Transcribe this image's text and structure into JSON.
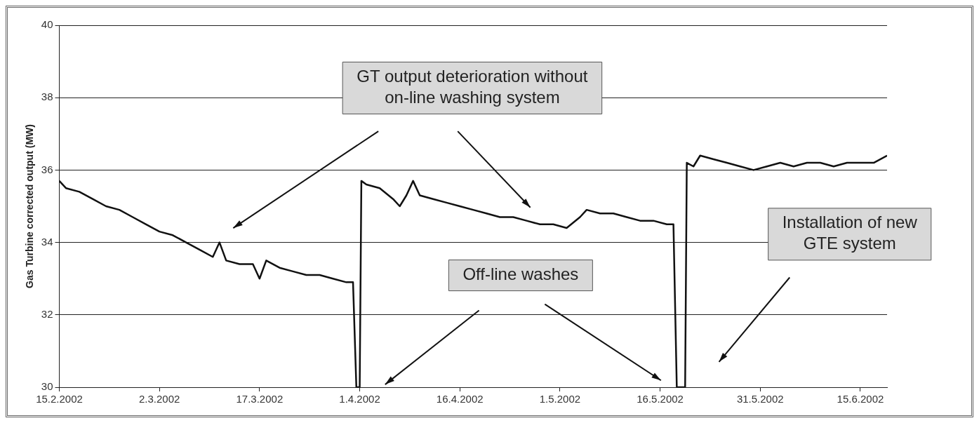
{
  "chart_data": {
    "type": "line",
    "ylabel": "Gas Turbine corrected output (MW)",
    "annotations": [
      "GT output deterioration without\non-line washing system",
      "Off-line washes",
      "Installation of new\nGTE system"
    ],
    "x": [
      "2002-02-15",
      "2002-02-16",
      "2002-02-18",
      "2002-02-20",
      "2002-02-22",
      "2002-02-24",
      "2002-02-26",
      "2002-02-28",
      "2002-03-02",
      "2002-03-04",
      "2002-03-06",
      "2002-03-08",
      "2002-03-10",
      "2002-03-11",
      "2002-03-12",
      "2002-03-14",
      "2002-03-16",
      "2002-03-17",
      "2002-03-18",
      "2002-03-20",
      "2002-03-22",
      "2002-03-24",
      "2002-03-26",
      "2002-03-28",
      "2002-03-30",
      "2002-03-31",
      "2002-03-31T12:00",
      "2002-04-01",
      "2002-04-01T06:00",
      "2002-04-02",
      "2002-04-04",
      "2002-04-06",
      "2002-04-07",
      "2002-04-08",
      "2002-04-09",
      "2002-04-10",
      "2002-04-12",
      "2002-04-14",
      "2002-04-16",
      "2002-04-18",
      "2002-04-20",
      "2002-04-22",
      "2002-04-24",
      "2002-04-26",
      "2002-04-28",
      "2002-04-30",
      "2002-05-02",
      "2002-05-04",
      "2002-05-05",
      "2002-05-07",
      "2002-05-09",
      "2002-05-11",
      "2002-05-13",
      "2002-05-15",
      "2002-05-17",
      "2002-05-18",
      "2002-05-18T12:00",
      "2002-05-19T18:00",
      "2002-05-20",
      "2002-05-21",
      "2002-05-22",
      "2002-05-24",
      "2002-05-26",
      "2002-05-28",
      "2002-05-30",
      "2002-06-01",
      "2002-06-03",
      "2002-06-05",
      "2002-06-07",
      "2002-06-09",
      "2002-06-11",
      "2002-06-13",
      "2002-06-15",
      "2002-06-17",
      "2002-06-19"
    ],
    "series": [
      {
        "color": "#111111",
        "values": [
          35.7,
          35.5,
          35.4,
          35.2,
          35.0,
          34.9,
          34.7,
          34.5,
          34.3,
          34.2,
          34.0,
          33.8,
          33.6,
          34.0,
          33.5,
          33.4,
          33.4,
          33.0,
          33.5,
          33.3,
          33.2,
          33.1,
          33.1,
          33.0,
          32.9,
          32.9,
          30,
          30,
          35.7,
          35.6,
          35.5,
          35.2,
          35.0,
          35.3,
          35.7,
          35.3,
          35.2,
          35.1,
          35.0,
          34.9,
          34.8,
          34.7,
          34.7,
          34.6,
          34.5,
          34.5,
          34.4,
          34.7,
          34.9,
          34.8,
          34.8,
          34.7,
          34.6,
          34.6,
          34.5,
          34.5,
          30,
          30,
          36.2,
          36.1,
          36.4,
          36.3,
          36.2,
          36.1,
          36.0,
          36.1,
          36.2,
          36.1,
          36.2,
          36.2,
          36.1,
          36.2,
          36.2,
          36.2,
          36.4
        ]
      }
    ],
    "xlim": [
      "2002-02-15",
      "2002-06-19"
    ],
    "xticks": [
      {
        "value": "2002-02-15",
        "label": "15.2.2002"
      },
      {
        "value": "2002-03-02",
        "label": "2.3.2002"
      },
      {
        "value": "2002-03-17",
        "label": "17.3.2002"
      },
      {
        "value": "2002-04-01",
        "label": "1.4.2002"
      },
      {
        "value": "2002-04-16",
        "label": "16.4.2002"
      },
      {
        "value": "2002-05-01",
        "label": "1.5.2002"
      },
      {
        "value": "2002-05-16",
        "label": "16.5.2002"
      },
      {
        "value": "2002-05-31",
        "label": "31.5.2002"
      },
      {
        "value": "2002-06-15",
        "label": "15.6.2002"
      }
    ],
    "ylim": [
      30,
      40
    ],
    "yticks": [
      30,
      32,
      34,
      36,
      38,
      40
    ],
    "grid": "y",
    "legend": false,
    "marker": "none",
    "line_style": "solid"
  }
}
